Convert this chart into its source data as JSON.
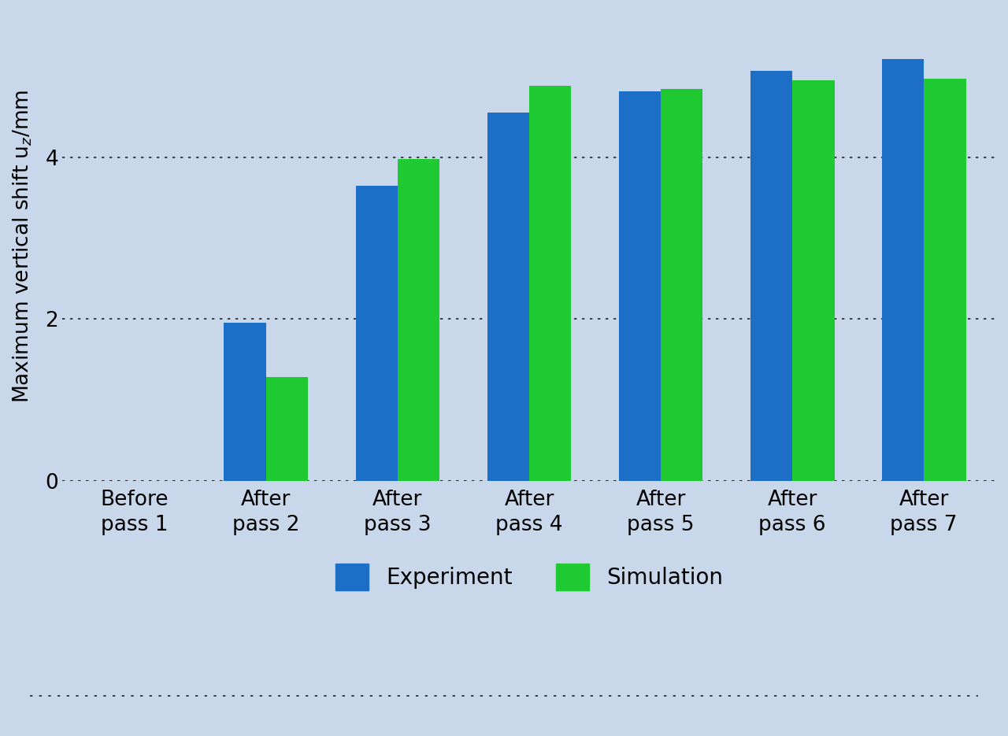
{
  "categories": [
    "Before\npass 1",
    "After\npass 2",
    "After\npass 3",
    "After\npass 4",
    "After\npass 5",
    "After\npass 6",
    "After\npass 7"
  ],
  "experiment": [
    0,
    1.95,
    3.65,
    4.55,
    4.82,
    5.07,
    5.22
  ],
  "simulation": [
    0,
    1.28,
    3.98,
    4.88,
    4.85,
    4.95,
    4.97
  ],
  "bar_color_experiment": "#1C6EC7",
  "bar_color_simulation": "#1EC931",
  "background_color": "#C8D8EA",
  "ylim": [
    0,
    5.8
  ],
  "yticks": [
    0,
    2,
    4
  ],
  "grid_color": "#222222",
  "legend_experiment": "Experiment",
  "legend_simulation": "Simulation",
  "bar_width": 0.32,
  "tick_fontsize": 19,
  "ylabel_fontsize": 19,
  "legend_fontsize": 20
}
